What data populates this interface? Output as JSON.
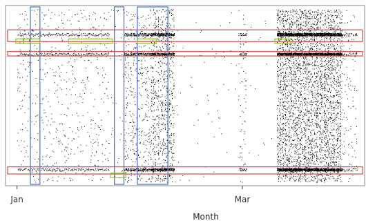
{
  "chart_data": {
    "type": "scatter",
    "title": "",
    "xlabel": "Month",
    "ylabel": "",
    "x_ticks": [
      {
        "label": "Jan",
        "value": 0
      },
      {
        "label": "Mar",
        "value": 59
      }
    ],
    "xlim": [
      -3,
      91
    ],
    "ylim": [
      0,
      100
    ],
    "grid": false,
    "legend": "none",
    "colors": {
      "points": "#000000",
      "horizontal_highlight": "#d9534f",
      "vertical_highlight": "#4a7bd0",
      "small_box": "#8bbf3a",
      "frame": "#888888"
    },
    "point_density_segments": [
      {
        "from": 0,
        "to": 24,
        "density": 0.35
      },
      {
        "from": 24,
        "to": 28,
        "density": 0.15
      },
      {
        "from": 28,
        "to": 35,
        "density": 0.9
      },
      {
        "from": 35,
        "to": 41,
        "density": 2.0
      },
      {
        "from": 41,
        "to": 58,
        "density": 0.05
      },
      {
        "from": 58,
        "to": 60,
        "density": 0.5
      },
      {
        "from": 60,
        "to": 68,
        "density": 0.04
      },
      {
        "from": 68,
        "to": 85,
        "density": 3.2
      },
      {
        "from": 85,
        "to": 89,
        "density": 0.35
      }
    ],
    "y_range_of_points": [
      2,
      98
    ],
    "dense_rows": [
      {
        "y": 84,
        "label_row": true
      },
      {
        "y": 73
      },
      {
        "y": 9
      }
    ],
    "horizontal_highlights": [
      {
        "y_low": 80,
        "y_high": 86.5
      },
      {
        "y_low": 72,
        "y_high": 74.5
      },
      {
        "y_low": 6.5,
        "y_high": 10.5
      }
    ],
    "vertical_highlights": [
      {
        "x_low": 3.5,
        "x_high": 6.0
      },
      {
        "x_low": 25.5,
        "x_high": 28.0
      },
      {
        "x_low": 31.5,
        "x_high": 39.5
      }
    ],
    "small_boxes": [
      {
        "x_low": -0.3,
        "x_high": 1.6,
        "y_low": 79.0,
        "y_high": 81.5
      },
      {
        "x_low": 1.8,
        "x_high": 6.0,
        "y_low": 79.0,
        "y_high": 81.5
      },
      {
        "x_low": 13.5,
        "x_high": 25.0,
        "y_low": 79.0,
        "y_high": 81.5
      },
      {
        "x_low": 31.5,
        "x_high": 36.5,
        "y_low": 79.0,
        "y_high": 81.5
      },
      {
        "x_low": 67.5,
        "x_high": 72.0,
        "y_low": 79.0,
        "y_high": 81.5
      },
      {
        "x_low": 24.5,
        "x_high": 28.5,
        "y_low": 4.5,
        "y_high": 7.0
      }
    ]
  }
}
